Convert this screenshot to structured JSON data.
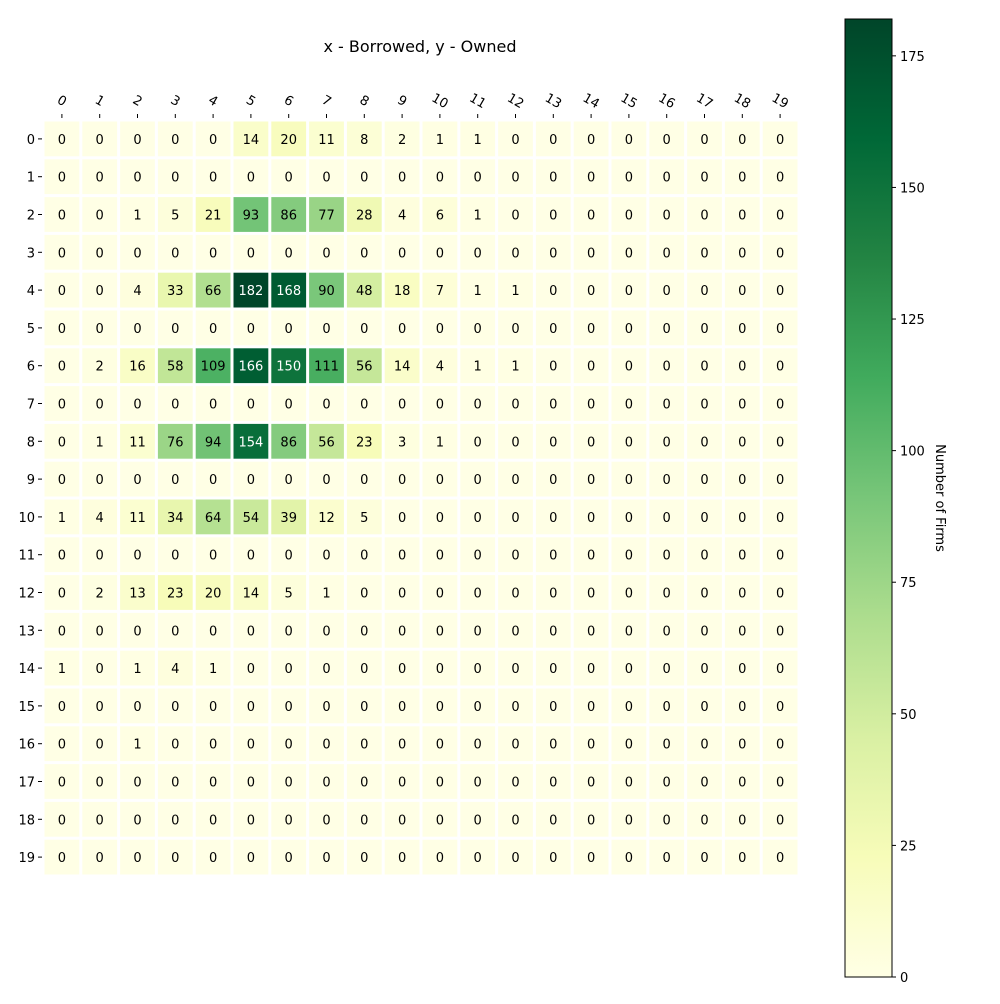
{
  "chart_data": {
    "type": "heatmap",
    "title": "x - Borrowed, y - Owned",
    "xlabel": "",
    "ylabel": "",
    "x_categories": [
      "0",
      "1",
      "2",
      "3",
      "4",
      "5",
      "6",
      "7",
      "8",
      "9",
      "10",
      "11",
      "12",
      "13",
      "14",
      "15",
      "16",
      "17",
      "18",
      "19"
    ],
    "y_categories": [
      "0",
      "1",
      "2",
      "3",
      "4",
      "5",
      "6",
      "7",
      "8",
      "9",
      "10",
      "11",
      "12",
      "13",
      "14",
      "15",
      "16",
      "17",
      "18",
      "19"
    ],
    "values": [
      [
        0,
        0,
        0,
        0,
        0,
        14,
        20,
        11,
        8,
        2,
        1,
        1,
        0,
        0,
        0,
        0,
        0,
        0,
        0,
        0
      ],
      [
        0,
        0,
        0,
        0,
        0,
        0,
        0,
        0,
        0,
        0,
        0,
        0,
        0,
        0,
        0,
        0,
        0,
        0,
        0,
        0
      ],
      [
        0,
        0,
        1,
        5,
        21,
        93,
        86,
        77,
        28,
        4,
        6,
        1,
        0,
        0,
        0,
        0,
        0,
        0,
        0,
        0
      ],
      [
        0,
        0,
        0,
        0,
        0,
        0,
        0,
        0,
        0,
        0,
        0,
        0,
        0,
        0,
        0,
        0,
        0,
        0,
        0,
        0
      ],
      [
        0,
        0,
        4,
        33,
        66,
        182,
        168,
        90,
        48,
        18,
        7,
        1,
        1,
        0,
        0,
        0,
        0,
        0,
        0,
        0
      ],
      [
        0,
        0,
        0,
        0,
        0,
        0,
        0,
        0,
        0,
        0,
        0,
        0,
        0,
        0,
        0,
        0,
        0,
        0,
        0,
        0
      ],
      [
        0,
        2,
        16,
        58,
        109,
        166,
        150,
        111,
        56,
        14,
        4,
        1,
        1,
        0,
        0,
        0,
        0,
        0,
        0,
        0
      ],
      [
        0,
        0,
        0,
        0,
        0,
        0,
        0,
        0,
        0,
        0,
        0,
        0,
        0,
        0,
        0,
        0,
        0,
        0,
        0,
        0
      ],
      [
        0,
        1,
        11,
        76,
        94,
        154,
        86,
        56,
        23,
        3,
        1,
        0,
        0,
        0,
        0,
        0,
        0,
        0,
        0,
        0
      ],
      [
        0,
        0,
        0,
        0,
        0,
        0,
        0,
        0,
        0,
        0,
        0,
        0,
        0,
        0,
        0,
        0,
        0,
        0,
        0,
        0
      ],
      [
        1,
        4,
        11,
        34,
        64,
        54,
        39,
        12,
        5,
        0,
        0,
        0,
        0,
        0,
        0,
        0,
        0,
        0,
        0,
        0
      ],
      [
        0,
        0,
        0,
        0,
        0,
        0,
        0,
        0,
        0,
        0,
        0,
        0,
        0,
        0,
        0,
        0,
        0,
        0,
        0,
        0
      ],
      [
        0,
        2,
        13,
        23,
        20,
        14,
        5,
        1,
        0,
        0,
        0,
        0,
        0,
        0,
        0,
        0,
        0,
        0,
        0,
        0
      ],
      [
        0,
        0,
        0,
        0,
        0,
        0,
        0,
        0,
        0,
        0,
        0,
        0,
        0,
        0,
        0,
        0,
        0,
        0,
        0,
        0
      ],
      [
        1,
        0,
        1,
        4,
        1,
        0,
        0,
        0,
        0,
        0,
        0,
        0,
        0,
        0,
        0,
        0,
        0,
        0,
        0,
        0
      ],
      [
        0,
        0,
        0,
        0,
        0,
        0,
        0,
        0,
        0,
        0,
        0,
        0,
        0,
        0,
        0,
        0,
        0,
        0,
        0,
        0
      ],
      [
        0,
        0,
        1,
        0,
        0,
        0,
        0,
        0,
        0,
        0,
        0,
        0,
        0,
        0,
        0,
        0,
        0,
        0,
        0,
        0
      ],
      [
        0,
        0,
        0,
        0,
        0,
        0,
        0,
        0,
        0,
        0,
        0,
        0,
        0,
        0,
        0,
        0,
        0,
        0,
        0,
        0
      ],
      [
        0,
        0,
        0,
        0,
        0,
        0,
        0,
        0,
        0,
        0,
        0,
        0,
        0,
        0,
        0,
        0,
        0,
        0,
        0,
        0
      ],
      [
        0,
        0,
        0,
        0,
        0,
        0,
        0,
        0,
        0,
        0,
        0,
        0,
        0,
        0,
        0,
        0,
        0,
        0,
        0,
        0
      ]
    ],
    "colorbar": {
      "label": "Number of Firms",
      "range": [
        0,
        182
      ],
      "ticks": [
        0,
        25,
        50,
        75,
        100,
        125,
        150,
        175
      ]
    },
    "colormap": "YlGn",
    "colormap_stops": [
      "#ffffe5",
      "#f7fcb9",
      "#d9f0a3",
      "#addd8e",
      "#78c679",
      "#41ab5d",
      "#238443",
      "#006837",
      "#004529"
    ],
    "cell_border_color": "#ffffff",
    "x_tick_position": "top",
    "x_tick_rotation": "slanted"
  }
}
